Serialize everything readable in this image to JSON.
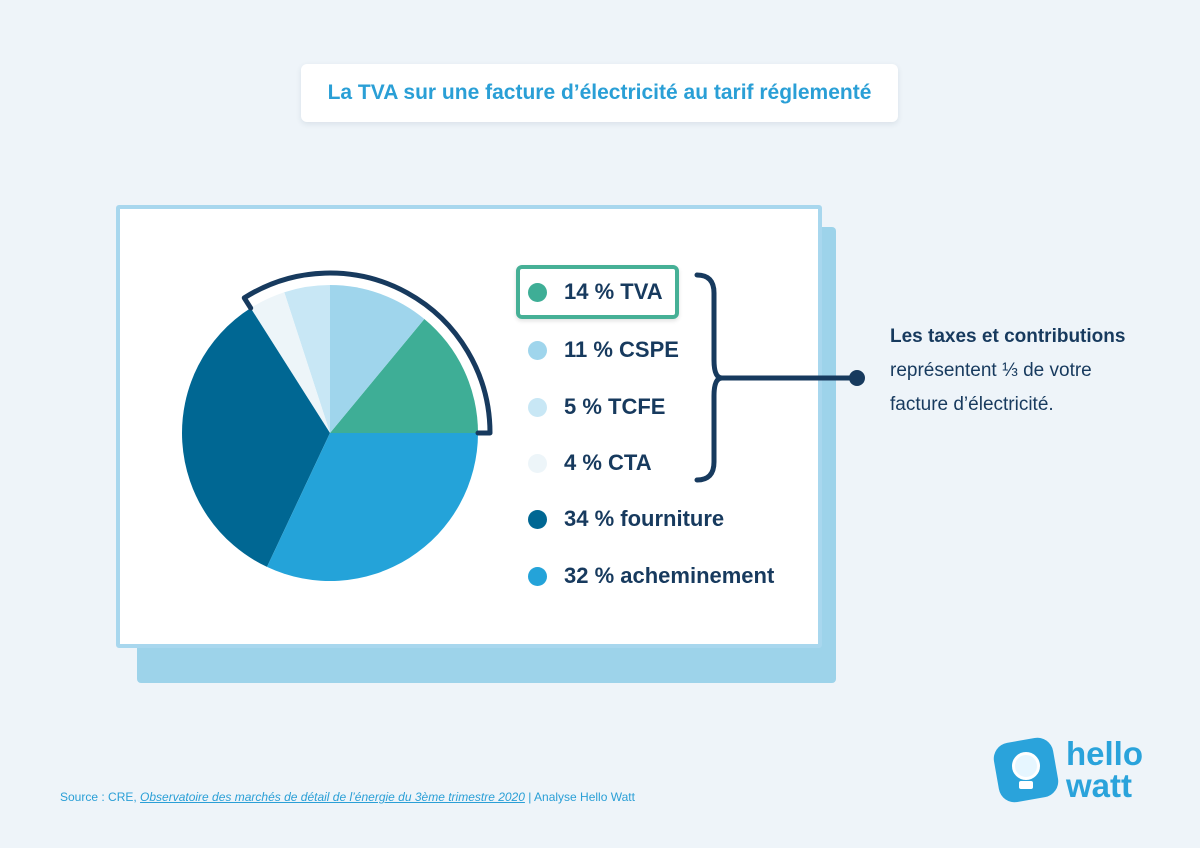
{
  "title": "La TVA sur une facture d’électricité au tarif réglementé",
  "chart_data": {
    "type": "pie",
    "slices": [
      {
        "label": "14 % TVA",
        "value": 14,
        "color": "#3eae96"
      },
      {
        "label": "11 % CSPE",
        "value": 11,
        "color": "#9fd5ec"
      },
      {
        "label": "5 % TCFE",
        "value": 5,
        "color": "#c8e7f5"
      },
      {
        "label": "4 % CTA",
        "value": 4,
        "color": "#edf5f9"
      },
      {
        "label": "34 % fourniture",
        "value": 34,
        "color": "#006793"
      },
      {
        "label": "32 % acheminement",
        "value": 32,
        "color": "#24a3d9"
      }
    ],
    "highlighted": "14 % TVA",
    "bracket_color": "#173a5e"
  },
  "callout": {
    "strong": "Les taxes et contributions",
    "line2": "représentent ⅓ de votre",
    "line3": "facture d’électricité."
  },
  "source": {
    "prefix": "Source : CRE, ",
    "link": "Observatoire des marchés de détail de l’énergie du 3ème trimestre 2020",
    "suffix": " | Analyse Hello Watt"
  },
  "logo": {
    "line1": "hello",
    "line2": "watt",
    "icon": "lightbulb-icon"
  }
}
